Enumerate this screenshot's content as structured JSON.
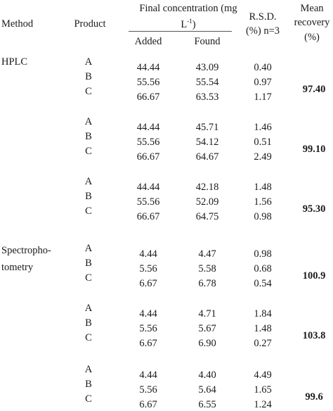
{
  "header": {
    "method": "Method",
    "product": "Product",
    "final_conc_line1": "Final concentration (mg",
    "final_conc_line2": "L",
    "final_conc_sup": "-1",
    "final_conc_close": ")",
    "added": "Added",
    "found": "Found",
    "rsd_line1": "R.S.D.",
    "rsd_line2": "(%) n=3",
    "mean_line1": "Mean",
    "mean_line2": "recovery",
    "mean_line3": "(%)"
  },
  "methods": {
    "hplc": "HPLC",
    "spectro_line1": "Spectropho-",
    "spectro_line2": "tometry"
  },
  "groups": [
    {
      "products": [
        "A",
        "B",
        "C"
      ],
      "rows": [
        {
          "added": "44.44",
          "found": "43.09",
          "rsd": "0.40"
        },
        {
          "added": "55.56",
          "found": "55.54",
          "rsd": "0.97"
        },
        {
          "added": "66.67",
          "found": "63.53",
          "rsd": "1.17"
        }
      ],
      "mean": "97.40"
    },
    {
      "products": [
        "A",
        "B",
        "C"
      ],
      "rows": [
        {
          "added": "44.44",
          "found": "45.71",
          "rsd": "1.46"
        },
        {
          "added": "55.56",
          "found": "54.12",
          "rsd": "0.51"
        },
        {
          "added": "66.67",
          "found": "64.67",
          "rsd": "2.49"
        }
      ],
      "mean": "99.10"
    },
    {
      "products": [
        "A",
        "B",
        "C"
      ],
      "rows": [
        {
          "added": "44.44",
          "found": "42.18",
          "rsd": "1.48"
        },
        {
          "added": "55.56",
          "found": "52.09",
          "rsd": "1.56"
        },
        {
          "added": "66.67",
          "found": "64.75",
          "rsd": "0.98"
        }
      ],
      "mean": "95.30"
    },
    {
      "products": [
        "A",
        "B",
        "C"
      ],
      "rows": [
        {
          "added": "4.44",
          "found": "4.47",
          "rsd": "0.98"
        },
        {
          "added": "5.56",
          "found": "5.58",
          "rsd": "0.68"
        },
        {
          "added": "6.67",
          "found": "6.78",
          "rsd": "0.54"
        }
      ],
      "mean": "100.9"
    },
    {
      "products": [
        "A",
        "B",
        "C"
      ],
      "rows": [
        {
          "added": "4.44",
          "found": "4.71",
          "rsd": "1.84"
        },
        {
          "added": "5.56",
          "found": "5.67",
          "rsd": "1.48"
        },
        {
          "added": "6.67",
          "found": "6.90",
          "rsd": "0.27"
        }
      ],
      "mean": "103.8"
    },
    {
      "products": [
        "A",
        "B",
        "C"
      ],
      "rows": [
        {
          "added": "4.44",
          "found": "4.40",
          "rsd": "4.49"
        },
        {
          "added": "5.56",
          "found": "5.64",
          "rsd": "1.65"
        },
        {
          "added": "6.67",
          "found": "6.55",
          "rsd": "1.24"
        }
      ],
      "mean": "99.6"
    }
  ]
}
